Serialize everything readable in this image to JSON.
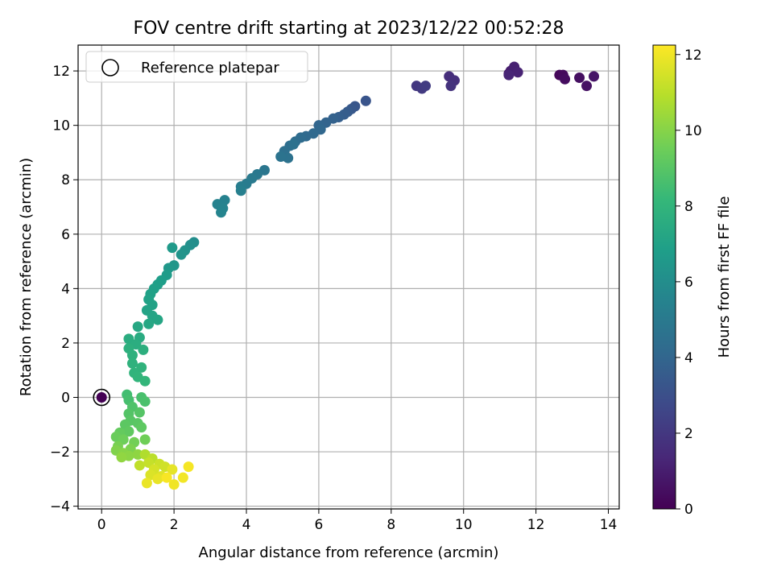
{
  "chart_data": {
    "type": "scatter",
    "title": "FOV centre drift starting at 2023/12/22 00:52:28",
    "xlabel": "Angular distance from reference (arcmin)",
    "ylabel": "Rotation from reference (arcmin)",
    "xlim": [
      -0.65,
      14.3
    ],
    "ylim": [
      -4.1,
      12.95
    ],
    "xticks": [
      0,
      2,
      4,
      6,
      8,
      10,
      12,
      14
    ],
    "yticks": [
      -4,
      -2,
      0,
      2,
      4,
      6,
      8,
      10,
      12
    ],
    "grid": true,
    "legend": {
      "position": "top-left",
      "entries": [
        "Reference platepar"
      ]
    },
    "colorbar": {
      "label": "Hours from first FF file",
      "range": [
        0,
        12.25
      ],
      "ticks": [
        0,
        2,
        4,
        6,
        8,
        10,
        12
      ],
      "colormap": "viridis"
    },
    "reference_point": {
      "x": 0,
      "y": 0,
      "hours": 0
    },
    "series": [
      {
        "points": [
          [
            12.65,
            11.85,
            0.2
          ],
          [
            12.75,
            11.85,
            0.3
          ],
          [
            12.8,
            11.7,
            0.4
          ],
          [
            13.2,
            11.75,
            0.5
          ],
          [
            13.4,
            11.45,
            0.6
          ],
          [
            13.6,
            11.8,
            0.7
          ],
          [
            11.25,
            11.9,
            0.9
          ],
          [
            11.3,
            12.0,
            1.0
          ],
          [
            11.4,
            12.15,
            1.1
          ],
          [
            11.5,
            11.95,
            1.2
          ],
          [
            11.25,
            11.85,
            1.3
          ],
          [
            9.6,
            11.8,
            1.6
          ],
          [
            9.75,
            11.65,
            1.7
          ],
          [
            9.65,
            11.45,
            1.8
          ],
          [
            8.7,
            11.45,
            2.0
          ],
          [
            8.85,
            11.35,
            2.1
          ],
          [
            8.95,
            11.45,
            2.2
          ],
          [
            7.3,
            10.9,
            3.2
          ],
          [
            7.0,
            10.7,
            3.3
          ],
          [
            6.9,
            10.6,
            3.4
          ],
          [
            6.8,
            10.5,
            3.5
          ],
          [
            6.7,
            10.4,
            3.6
          ],
          [
            6.55,
            10.3,
            3.7
          ],
          [
            6.4,
            10.25,
            3.8
          ],
          [
            6.2,
            10.1,
            3.9
          ],
          [
            6.0,
            10.0,
            4.0
          ],
          [
            6.05,
            9.85,
            4.1
          ],
          [
            5.85,
            9.7,
            4.15
          ],
          [
            5.65,
            9.6,
            4.2
          ],
          [
            5.5,
            9.55,
            4.3
          ],
          [
            5.35,
            9.4,
            4.35
          ],
          [
            5.2,
            9.25,
            4.4
          ],
          [
            5.05,
            9.05,
            4.5
          ],
          [
            5.3,
            9.3,
            4.55
          ],
          [
            5.15,
            8.8,
            4.6
          ],
          [
            4.95,
            8.85,
            4.65
          ],
          [
            4.5,
            8.35,
            4.8
          ],
          [
            4.3,
            8.2,
            4.9
          ],
          [
            4.15,
            8.05,
            5.0
          ],
          [
            4.0,
            7.85,
            5.1
          ],
          [
            3.85,
            7.75,
            5.2
          ],
          [
            3.85,
            7.6,
            5.3
          ],
          [
            3.4,
            7.25,
            5.4
          ],
          [
            3.2,
            7.1,
            5.45
          ],
          [
            3.35,
            6.95,
            5.5
          ],
          [
            3.3,
            6.8,
            5.55
          ],
          [
            2.55,
            5.7,
            6.0
          ],
          [
            2.45,
            5.6,
            6.1
          ],
          [
            2.3,
            5.4,
            6.2
          ],
          [
            2.2,
            5.25,
            6.3
          ],
          [
            2.0,
            4.85,
            6.4
          ],
          [
            1.85,
            4.75,
            6.5
          ],
          [
            1.95,
            5.5,
            6.6
          ],
          [
            1.8,
            4.5,
            6.7
          ],
          [
            1.65,
            4.3,
            6.8
          ],
          [
            1.55,
            4.15,
            6.85
          ],
          [
            1.45,
            4.0,
            6.9
          ],
          [
            1.35,
            3.8,
            6.95
          ],
          [
            1.3,
            3.6,
            7.0
          ],
          [
            1.4,
            3.4,
            7.05
          ],
          [
            1.25,
            3.2,
            7.1
          ],
          [
            1.4,
            3.0,
            7.15
          ],
          [
            1.55,
            2.85,
            7.2
          ],
          [
            1.3,
            2.7,
            7.25
          ],
          [
            1.0,
            2.6,
            7.3
          ],
          [
            1.05,
            2.2,
            7.5
          ],
          [
            0.75,
            2.15,
            7.55
          ],
          [
            0.95,
            1.95,
            7.6
          ],
          [
            1.15,
            1.75,
            7.7
          ],
          [
            0.75,
            1.8,
            7.75
          ],
          [
            0.85,
            1.55,
            7.8
          ],
          [
            0.85,
            1.25,
            7.85
          ],
          [
            1.1,
            1.1,
            7.9
          ],
          [
            0.9,
            0.9,
            7.95
          ],
          [
            1.0,
            0.75,
            8.0
          ],
          [
            1.2,
            0.6,
            8.05
          ],
          [
            0.7,
            0.1,
            8.5
          ],
          [
            0.75,
            -0.1,
            8.6
          ],
          [
            1.1,
            0.0,
            8.65
          ],
          [
            1.2,
            -0.15,
            8.7
          ],
          [
            0.85,
            -0.35,
            8.8
          ],
          [
            0.75,
            -0.6,
            8.9
          ],
          [
            1.05,
            -0.55,
            8.95
          ],
          [
            0.8,
            -0.85,
            9.0
          ],
          [
            1.0,
            -0.95,
            9.05
          ],
          [
            0.65,
            -1.0,
            9.1
          ],
          [
            1.1,
            -1.1,
            9.15
          ],
          [
            0.75,
            -1.25,
            9.2
          ],
          [
            0.5,
            -1.3,
            9.3
          ],
          [
            0.4,
            -1.45,
            9.4
          ],
          [
            0.6,
            -1.55,
            9.5
          ],
          [
            1.2,
            -1.55,
            9.55
          ],
          [
            0.9,
            -1.65,
            9.6
          ],
          [
            0.45,
            -1.8,
            9.7
          ],
          [
            0.8,
            -1.9,
            9.8
          ],
          [
            0.4,
            -1.95,
            9.9
          ],
          [
            0.6,
            -2.05,
            10.0
          ],
          [
            0.75,
            -2.15,
            10.1
          ],
          [
            1.0,
            -2.1,
            10.15
          ],
          [
            0.55,
            -2.2,
            10.2
          ],
          [
            1.2,
            -2.1,
            10.8
          ],
          [
            1.4,
            -2.25,
            11.0
          ],
          [
            1.05,
            -2.5,
            11.1
          ],
          [
            1.3,
            -2.4,
            11.2
          ],
          [
            1.6,
            -2.45,
            11.3
          ],
          [
            1.75,
            -2.55,
            11.4
          ],
          [
            1.45,
            -2.65,
            11.5
          ],
          [
            1.35,
            -2.85,
            11.6
          ],
          [
            1.65,
            -2.9,
            11.7
          ],
          [
            1.95,
            -2.65,
            11.8
          ],
          [
            1.55,
            -3.0,
            11.85
          ],
          [
            1.25,
            -3.15,
            11.9
          ],
          [
            2.0,
            -3.2,
            12.0
          ],
          [
            2.25,
            -2.95,
            12.05
          ],
          [
            2.4,
            -2.55,
            12.1
          ],
          [
            1.8,
            -2.95,
            12.15
          ]
        ]
      }
    ]
  },
  "colors": {
    "grid": "#b0b0b0",
    "axes": "#000000",
    "viridis": [
      "#440154",
      "#482878",
      "#3e4989",
      "#31688e",
      "#26828e",
      "#1f9e89",
      "#35b779",
      "#6ece58",
      "#b5de2b",
      "#fde725"
    ]
  }
}
